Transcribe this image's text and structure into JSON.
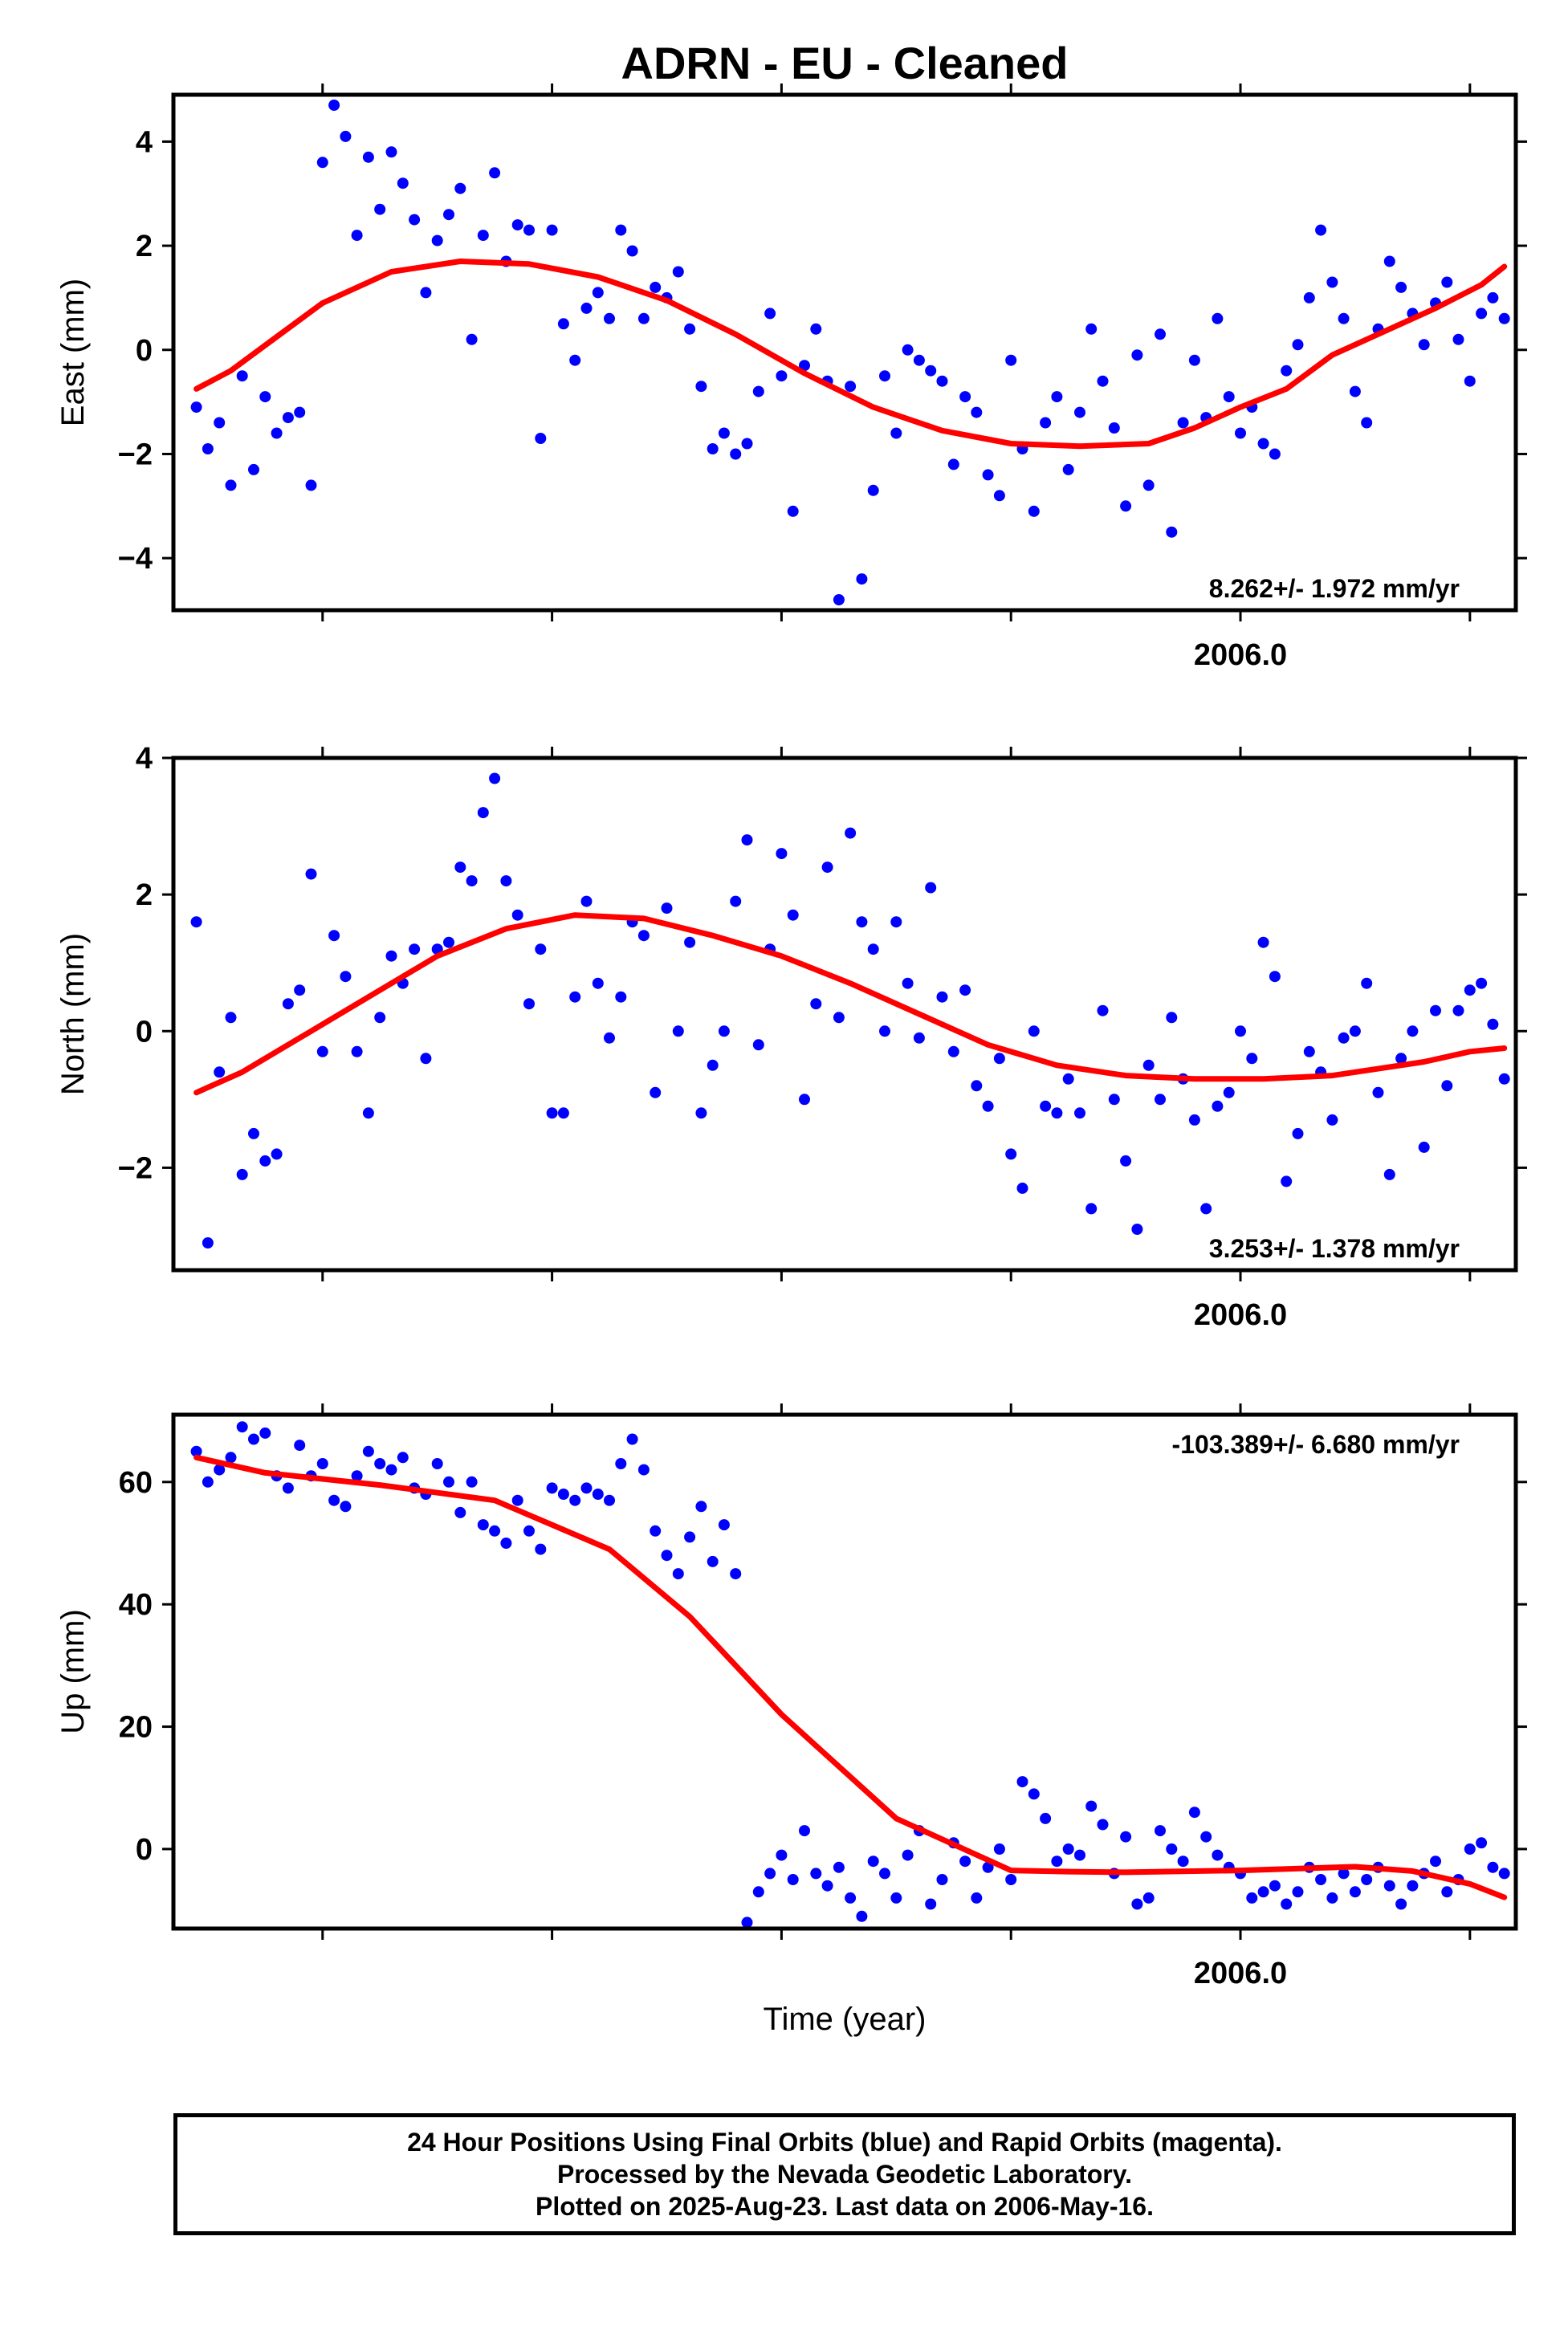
{
  "title": "ADRN  - EU - Cleaned",
  "xlabel": "Time (year)",
  "footer": {
    "line1": "24 Hour Positions Using Final Orbits (blue) and Rapid Orbits (magenta).",
    "line2": "Processed by the Nevada Geodetic Laboratory.",
    "line3": "Plotted on 2025-Aug-23. Last data on 2006-May-16."
  },
  "colors": {
    "points": "#0000ff",
    "fit": "#ff0000",
    "axes": "#000000"
  },
  "chart_data": [
    {
      "type": "scatter",
      "ylabel": "East (mm)",
      "rate": "8.262+/- 1.972 mm/yr",
      "xlim": [
        2005.07,
        2006.24
      ],
      "ylim": [
        -5.0,
        4.9
      ],
      "yticks": [
        -4,
        -2,
        0,
        2,
        4
      ],
      "xtick_labels": [
        {
          "x": 2006.0,
          "label": "2006.0"
        }
      ],
      "fit": {
        "x": [
          2005.09,
          2005.12,
          2005.16,
          2005.2,
          2005.26,
          2005.32,
          2005.38,
          2005.44,
          2005.5,
          2005.56,
          2005.62,
          2005.68,
          2005.74,
          2005.8,
          2005.86,
          2005.92,
          2005.96,
          2006.0,
          2006.04,
          2006.08,
          2006.13,
          2006.17,
          2006.21,
          2006.23
        ],
        "y": [
          -0.75,
          -0.4,
          0.25,
          0.9,
          1.5,
          1.7,
          1.65,
          1.4,
          0.95,
          0.3,
          -0.45,
          -1.1,
          -1.55,
          -1.8,
          -1.85,
          -1.8,
          -1.5,
          -1.1,
          -0.75,
          -0.1,
          0.4,
          0.8,
          1.25,
          1.6
        ]
      },
      "points": {
        "x": [
          2005.09,
          2005.1,
          2005.11,
          2005.12,
          2005.13,
          2005.14,
          2005.15,
          2005.16,
          2005.17,
          2005.18,
          2005.19,
          2005.2,
          2005.21,
          2005.22,
          2005.23,
          2005.24,
          2005.25,
          2005.26,
          2005.27,
          2005.28,
          2005.29,
          2005.3,
          2005.31,
          2005.32,
          2005.33,
          2005.34,
          2005.35,
          2005.36,
          2005.37,
          2005.38,
          2005.39,
          2005.4,
          2005.41,
          2005.42,
          2005.43,
          2005.44,
          2005.45,
          2005.46,
          2005.47,
          2005.48,
          2005.49,
          2005.5,
          2005.51,
          2005.52,
          2005.53,
          2005.54,
          2005.55,
          2005.56,
          2005.57,
          2005.58,
          2005.59,
          2005.6,
          2005.61,
          2005.62,
          2005.63,
          2005.64,
          2005.65,
          2005.66,
          2005.67,
          2005.68,
          2005.69,
          2005.7,
          2005.71,
          2005.72,
          2005.73,
          2005.74,
          2005.75,
          2005.76,
          2005.77,
          2005.78,
          2005.79,
          2005.8,
          2005.81,
          2005.82,
          2005.83,
          2005.84,
          2005.85,
          2005.86,
          2005.87,
          2005.88,
          2005.89,
          2005.9,
          2005.91,
          2005.92,
          2005.93,
          2005.94,
          2005.95,
          2005.96,
          2005.97,
          2005.98,
          2005.99,
          2006.0,
          2006.01,
          2006.02,
          2006.03,
          2006.04,
          2006.05,
          2006.06,
          2006.07,
          2006.08,
          2006.09,
          2006.1,
          2006.11,
          2006.12,
          2006.13,
          2006.14,
          2006.15,
          2006.16,
          2006.17,
          2006.18,
          2006.19,
          2006.2,
          2006.21,
          2006.22,
          2006.23
        ],
        "y": [
          -1.1,
          -1.9,
          -1.4,
          -2.6,
          -0.5,
          -2.3,
          -0.9,
          -1.6,
          -1.3,
          -1.2,
          -2.6,
          3.6,
          4.7,
          4.1,
          2.2,
          3.7,
          2.7,
          3.8,
          3.2,
          2.5,
          1.1,
          2.1,
          2.6,
          3.1,
          0.2,
          2.2,
          3.4,
          1.7,
          2.4,
          2.3,
          -1.7,
          2.3,
          0.5,
          -0.2,
          0.8,
          1.1,
          0.6,
          2.3,
          1.9,
          0.6,
          1.2,
          1.0,
          1.5,
          0.4,
          -0.7,
          -1.9,
          -1.6,
          -2.0,
          -1.8,
          -0.8,
          0.7,
          -0.5,
          -3.1,
          -0.3,
          0.4,
          -0.6,
          -4.8,
          -0.7,
          -4.4,
          -2.7,
          -0.5,
          -1.6,
          0.0,
          -0.2,
          -0.4,
          -0.6,
          -2.2,
          -0.9,
          -1.2,
          -2.4,
          -2.8,
          -0.2,
          -1.9,
          -3.1,
          -1.4,
          -0.9,
          -2.3,
          -1.2,
          0.4,
          -0.6,
          -1.5,
          -3.0,
          -0.1,
          -2.6,
          0.3,
          -3.5,
          -1.4,
          -0.2,
          -1.3,
          0.6,
          -0.9,
          -1.6,
          -1.1,
          -1.8,
          -2.0,
          -0.4,
          0.1,
          1.0,
          2.3,
          1.3,
          0.6,
          -0.8,
          -1.4,
          0.4,
          1.7,
          1.2,
          0.7,
          0.1,
          0.9,
          1.3,
          0.2,
          -0.6,
          0.7,
          1.0,
          0.6
        ]
      }
    },
    {
      "type": "scatter",
      "ylabel": "North (mm)",
      "rate": "3.253+/- 1.378 mm/yr",
      "xlim": [
        2005.07,
        2006.24
      ],
      "ylim": [
        -3.5,
        4.0
      ],
      "yticks": [
        -2,
        0,
        2,
        4
      ],
      "xtick_labels": [
        {
          "x": 2006.0,
          "label": "2006.0"
        }
      ],
      "fit": {
        "x": [
          2005.09,
          2005.13,
          2005.18,
          2005.24,
          2005.3,
          2005.36,
          2005.42,
          2005.48,
          2005.54,
          2005.6,
          2005.66,
          2005.72,
          2005.78,
          2005.84,
          2005.9,
          2005.96,
          2006.02,
          2006.08,
          2006.12,
          2006.16,
          2006.2,
          2006.23
        ],
        "y": [
          -0.9,
          -0.6,
          -0.1,
          0.5,
          1.1,
          1.5,
          1.7,
          1.65,
          1.4,
          1.1,
          0.7,
          0.25,
          -0.2,
          -0.5,
          -0.65,
          -0.7,
          -0.7,
          -0.65,
          -0.55,
          -0.45,
          -0.3,
          -0.25
        ]
      },
      "points": {
        "x": [
          2005.09,
          2005.1,
          2005.11,
          2005.12,
          2005.13,
          2005.14,
          2005.15,
          2005.16,
          2005.17,
          2005.18,
          2005.19,
          2005.2,
          2005.21,
          2005.22,
          2005.23,
          2005.24,
          2005.25,
          2005.26,
          2005.27,
          2005.28,
          2005.29,
          2005.3,
          2005.31,
          2005.32,
          2005.33,
          2005.34,
          2005.35,
          2005.36,
          2005.37,
          2005.38,
          2005.39,
          2005.4,
          2005.41,
          2005.42,
          2005.43,
          2005.44,
          2005.45,
          2005.46,
          2005.47,
          2005.48,
          2005.49,
          2005.5,
          2005.51,
          2005.52,
          2005.53,
          2005.54,
          2005.55,
          2005.56,
          2005.57,
          2005.58,
          2005.59,
          2005.6,
          2005.61,
          2005.62,
          2005.63,
          2005.64,
          2005.65,
          2005.66,
          2005.67,
          2005.68,
          2005.69,
          2005.7,
          2005.71,
          2005.72,
          2005.73,
          2005.74,
          2005.75,
          2005.76,
          2005.77,
          2005.78,
          2005.79,
          2005.8,
          2005.81,
          2005.82,
          2005.83,
          2005.84,
          2005.85,
          2005.86,
          2005.87,
          2005.88,
          2005.89,
          2005.9,
          2005.91,
          2005.92,
          2005.93,
          2005.94,
          2005.95,
          2005.96,
          2005.97,
          2005.98,
          2005.99,
          2006.0,
          2006.01,
          2006.02,
          2006.03,
          2006.04,
          2006.05,
          2006.06,
          2006.07,
          2006.08,
          2006.09,
          2006.1,
          2006.11,
          2006.12,
          2006.13,
          2006.14,
          2006.15,
          2006.16,
          2006.17,
          2006.18,
          2006.19,
          2006.2,
          2006.21,
          2006.22,
          2006.23
        ],
        "y": [
          1.6,
          -3.1,
          -0.6,
          0.2,
          -2.1,
          -1.5,
          -1.9,
          -1.8,
          0.4,
          0.6,
          2.3,
          -0.3,
          1.4,
          0.8,
          -0.3,
          -1.2,
          0.2,
          1.1,
          0.7,
          1.2,
          -0.4,
          1.2,
          1.3,
          2.4,
          2.2,
          3.2,
          3.7,
          2.2,
          1.7,
          0.4,
          1.2,
          -1.2,
          -1.2,
          0.5,
          1.9,
          0.7,
          -0.1,
          0.5,
          1.6,
          1.4,
          -0.9,
          1.8,
          0.0,
          1.3,
          -1.2,
          -0.5,
          0.0,
          1.9,
          2.8,
          -0.2,
          1.2,
          2.6,
          1.7,
          -1.0,
          0.4,
          2.4,
          0.2,
          2.9,
          1.6,
          1.2,
          0.0,
          1.6,
          0.7,
          -0.1,
          2.1,
          0.5,
          -0.3,
          0.6,
          -0.8,
          -1.1,
          -0.4,
          -1.8,
          -2.3,
          0.0,
          -1.1,
          -1.2,
          -0.7,
          -1.2,
          -2.6,
          0.3,
          -1.0,
          -1.9,
          -2.9,
          -0.5,
          -1.0,
          0.2,
          -0.7,
          -1.3,
          -2.6,
          -1.1,
          -0.9,
          0.0,
          -0.4,
          1.3,
          0.8,
          -2.2,
          -1.5,
          -0.3,
          -0.6,
          -1.3,
          -0.1,
          0.0,
          0.7,
          -0.9,
          -2.1,
          -0.4,
          0.0,
          -1.7,
          0.3,
          -0.8,
          0.3,
          0.6,
          0.7,
          0.1,
          -0.7
        ]
      }
    },
    {
      "type": "scatter",
      "ylabel": "Up (mm)",
      "rate": "-103.389+/- 6.680 mm/yr",
      "xlim": [
        2005.07,
        2006.24
      ],
      "ylim": [
        -13,
        71
      ],
      "yticks": [
        0,
        20,
        40,
        60
      ],
      "xtick_labels": [
        {
          "x": 2006.0,
          "label": "2006.0"
        }
      ],
      "fit": {
        "x": [
          2005.09,
          2005.15,
          2005.25,
          2005.35,
          2005.45,
          2005.52,
          2005.6,
          2005.7,
          2005.8,
          2005.85,
          2005.9,
          2006.0,
          2006.1,
          2006.15,
          2006.2,
          2006.23
        ],
        "y": [
          64,
          61.5,
          59.5,
          57,
          49,
          38,
          22,
          5,
          -3.5,
          -3.7,
          -3.8,
          -3.5,
          -2.9,
          -3.6,
          -5.7,
          -7.9
        ]
      },
      "points": {
        "x": [
          2005.09,
          2005.1,
          2005.11,
          2005.12,
          2005.13,
          2005.14,
          2005.15,
          2005.16,
          2005.17,
          2005.18,
          2005.19,
          2005.2,
          2005.21,
          2005.22,
          2005.23,
          2005.24,
          2005.25,
          2005.26,
          2005.27,
          2005.28,
          2005.29,
          2005.3,
          2005.31,
          2005.32,
          2005.33,
          2005.34,
          2005.35,
          2005.36,
          2005.37,
          2005.38,
          2005.39,
          2005.4,
          2005.41,
          2005.42,
          2005.43,
          2005.44,
          2005.45,
          2005.46,
          2005.47,
          2005.48,
          2005.49,
          2005.5,
          2005.51,
          2005.52,
          2005.53,
          2005.54,
          2005.55,
          2005.56,
          2005.57,
          2005.58,
          2005.59,
          2005.6,
          2005.61,
          2005.62,
          2005.63,
          2005.64,
          2005.65,
          2005.66,
          2005.67,
          2005.68,
          2005.69,
          2005.7,
          2005.71,
          2005.72,
          2005.73,
          2005.74,
          2005.75,
          2005.76,
          2005.77,
          2005.78,
          2005.79,
          2005.8,
          2005.81,
          2005.82,
          2005.83,
          2005.84,
          2005.85,
          2005.86,
          2005.87,
          2005.88,
          2005.89,
          2005.9,
          2005.91,
          2005.92,
          2005.93,
          2005.94,
          2005.95,
          2005.96,
          2005.97,
          2005.98,
          2005.99,
          2006.0,
          2006.01,
          2006.02,
          2006.03,
          2006.04,
          2006.05,
          2006.06,
          2006.07,
          2006.08,
          2006.09,
          2006.1,
          2006.11,
          2006.12,
          2006.13,
          2006.14,
          2006.15,
          2006.16,
          2006.17,
          2006.18,
          2006.19,
          2006.2,
          2006.21,
          2006.22,
          2006.23
        ],
        "y": [
          65,
          60,
          62,
          64,
          69,
          67,
          68,
          61,
          59,
          66,
          61,
          63,
          57,
          56,
          61,
          65,
          63,
          62,
          64,
          59,
          58,
          63,
          60,
          55,
          60,
          53,
          52,
          50,
          57,
          52,
          49,
          59,
          58,
          57,
          59,
          58,
          57,
          63,
          67,
          62,
          52,
          48,
          45,
          51,
          56,
          47,
          53,
          45,
          -12,
          -7,
          -4,
          -1,
          -5,
          3,
          -4,
          -6,
          -3,
          -8,
          -11,
          -2,
          -4,
          -8,
          -1,
          3,
          -9,
          -5,
          1,
          -2,
          -8,
          -3,
          0,
          -5,
          11,
          9,
          5,
          -2,
          0,
          -1,
          7,
          4,
          -4,
          2,
          -9,
          -8,
          3,
          0,
          -2,
          6,
          2,
          -1,
          -3,
          -4,
          -8,
          -7,
          -6,
          -9,
          -7,
          -3,
          -5,
          -8,
          -4,
          -7,
          -5,
          -3,
          -6,
          -9,
          -6,
          -4,
          -2,
          -7,
          -5,
          0,
          1,
          -3,
          -4
        ]
      }
    }
  ]
}
